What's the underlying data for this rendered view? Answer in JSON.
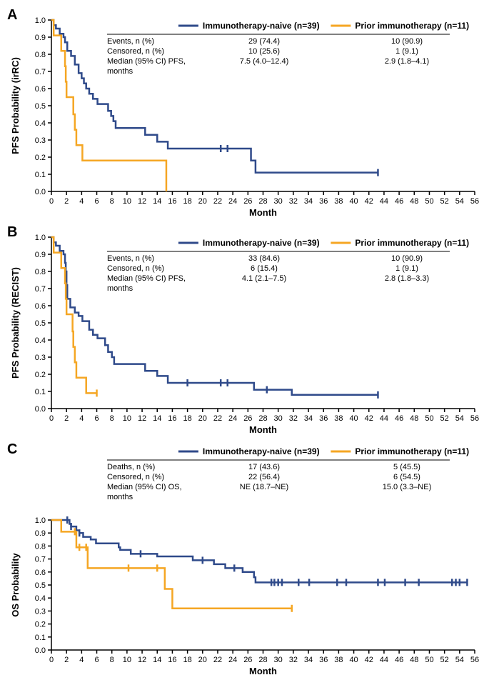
{
  "colors": {
    "naive": "#2f4a8a",
    "prior": "#f5a623",
    "axis": "#000000",
    "background": "#ffffff"
  },
  "typography": {
    "panel_label_fontsize": 20,
    "axis_label_fontsize": 13,
    "tick_label_fontsize": 11,
    "legend_fontsize": 12,
    "table_fontsize": 11,
    "font_family": "Arial"
  },
  "layout": {
    "total_width": 685,
    "panel_height_A": 300,
    "panel_height_B": 300,
    "panel_height_C": 340
  },
  "legend": {
    "naive_label": "Immunotherapy-naive (n=39)",
    "prior_label": "Prior immunotherapy (n=11)"
  },
  "panels": {
    "A": {
      "label": "A",
      "y_axis_label": "PFS Probability (irRC)",
      "x_axis_label": "Month",
      "xlim": [
        0,
        56
      ],
      "xtick_step": 2,
      "ylim": [
        0,
        1.0
      ],
      "ytick_step": 0.1,
      "table": {
        "rows": [
          "Events, n (%)",
          "Censored, n (%)",
          "Median (95% CI) PFS,",
          "months"
        ],
        "naive_vals": [
          "29 (74.4)",
          "10 (25.6)",
          "7.5 (4.0–12.4)",
          ""
        ],
        "prior_vals": [
          "10 (90.9)",
          "1 (9.1)",
          "2.9 (1.8–4.1)",
          ""
        ]
      },
      "km_naive": [
        [
          0,
          1.0
        ],
        [
          0.3,
          1.0
        ],
        [
          0.3,
          0.97
        ],
        [
          0.6,
          0.97
        ],
        [
          0.6,
          0.95
        ],
        [
          1.1,
          0.95
        ],
        [
          1.1,
          0.92
        ],
        [
          1.6,
          0.92
        ],
        [
          1.6,
          0.9
        ],
        [
          1.8,
          0.9
        ],
        [
          1.8,
          0.87
        ],
        [
          2.1,
          0.87
        ],
        [
          2.1,
          0.82
        ],
        [
          2.6,
          0.82
        ],
        [
          2.6,
          0.79
        ],
        [
          3.1,
          0.79
        ],
        [
          3.1,
          0.74
        ],
        [
          3.6,
          0.74
        ],
        [
          3.6,
          0.69
        ],
        [
          4.0,
          0.69
        ],
        [
          4.0,
          0.66
        ],
        [
          4.3,
          0.66
        ],
        [
          4.3,
          0.63
        ],
        [
          4.6,
          0.63
        ],
        [
          4.6,
          0.6
        ],
        [
          5.0,
          0.6
        ],
        [
          5.0,
          0.57
        ],
        [
          5.5,
          0.57
        ],
        [
          5.5,
          0.54
        ],
        [
          6.1,
          0.54
        ],
        [
          6.1,
          0.51
        ],
        [
          7.5,
          0.51
        ],
        [
          7.5,
          0.47
        ],
        [
          7.9,
          0.47
        ],
        [
          7.9,
          0.44
        ],
        [
          8.2,
          0.44
        ],
        [
          8.2,
          0.41
        ],
        [
          8.5,
          0.41
        ],
        [
          8.5,
          0.37
        ],
        [
          12.4,
          0.37
        ],
        [
          12.4,
          0.33
        ],
        [
          14.0,
          0.33
        ],
        [
          14.0,
          0.29
        ],
        [
          15.4,
          0.29
        ],
        [
          15.4,
          0.25
        ],
        [
          23.3,
          0.25
        ],
        [
          26.4,
          0.25
        ],
        [
          26.4,
          0.18
        ],
        [
          27.0,
          0.18
        ],
        [
          27.0,
          0.11
        ],
        [
          43.2,
          0.11
        ]
      ],
      "km_prior": [
        [
          0,
          1.0
        ],
        [
          0.3,
          1.0
        ],
        [
          0.3,
          0.91
        ],
        [
          1.3,
          0.91
        ],
        [
          1.3,
          0.82
        ],
        [
          1.8,
          0.82
        ],
        [
          1.8,
          0.73
        ],
        [
          1.9,
          0.73
        ],
        [
          1.9,
          0.64
        ],
        [
          2.0,
          0.64
        ],
        [
          2.0,
          0.55
        ],
        [
          2.9,
          0.55
        ],
        [
          2.9,
          0.45
        ],
        [
          3.1,
          0.45
        ],
        [
          3.1,
          0.36
        ],
        [
          3.3,
          0.36
        ],
        [
          3.3,
          0.27
        ],
        [
          4.1,
          0.27
        ],
        [
          4.1,
          0.18
        ],
        [
          15.2,
          0.18
        ],
        [
          15.2,
          0.0
        ]
      ],
      "censor_naive": [
        [
          22.4,
          0.25
        ],
        [
          23.3,
          0.25
        ],
        [
          43.2,
          0.11
        ]
      ],
      "censor_prior": []
    },
    "B": {
      "label": "B",
      "y_axis_label": "PFS Probability (RECIST)",
      "x_axis_label": "Month",
      "xlim": [
        0,
        56
      ],
      "xtick_step": 2,
      "ylim": [
        0,
        1.0
      ],
      "ytick_step": 0.1,
      "table": {
        "rows": [
          "Events, n (%)",
          "Censored, n (%)",
          "Median (95% CI) PFS,",
          "months"
        ],
        "naive_vals": [
          "33 (84.6)",
          "6 (15.4)",
          "4.1 (2.1–7.5)",
          ""
        ],
        "prior_vals": [
          "10 (90.9)",
          "1 (9.1)",
          "2.8 (1.8–3.3)",
          ""
        ]
      },
      "km_naive": [
        [
          0,
          1.0
        ],
        [
          0.3,
          1.0
        ],
        [
          0.3,
          0.97
        ],
        [
          0.6,
          0.97
        ],
        [
          0.6,
          0.95
        ],
        [
          1.1,
          0.95
        ],
        [
          1.1,
          0.92
        ],
        [
          1.6,
          0.92
        ],
        [
          1.6,
          0.9
        ],
        [
          1.8,
          0.9
        ],
        [
          1.8,
          0.85
        ],
        [
          1.9,
          0.85
        ],
        [
          1.9,
          0.8
        ],
        [
          2.0,
          0.8
        ],
        [
          2.0,
          0.72
        ],
        [
          2.1,
          0.72
        ],
        [
          2.1,
          0.64
        ],
        [
          2.5,
          0.64
        ],
        [
          2.5,
          0.59
        ],
        [
          3.1,
          0.59
        ],
        [
          3.1,
          0.56
        ],
        [
          3.6,
          0.56
        ],
        [
          3.6,
          0.54
        ],
        [
          4.1,
          0.54
        ],
        [
          4.1,
          0.51
        ],
        [
          5.0,
          0.51
        ],
        [
          5.0,
          0.46
        ],
        [
          5.5,
          0.46
        ],
        [
          5.5,
          0.43
        ],
        [
          6.1,
          0.43
        ],
        [
          6.1,
          0.41
        ],
        [
          7.1,
          0.41
        ],
        [
          7.1,
          0.37
        ],
        [
          7.5,
          0.37
        ],
        [
          7.5,
          0.33
        ],
        [
          8.0,
          0.33
        ],
        [
          8.0,
          0.3
        ],
        [
          8.3,
          0.3
        ],
        [
          8.3,
          0.26
        ],
        [
          12.4,
          0.26
        ],
        [
          12.4,
          0.22
        ],
        [
          14.0,
          0.22
        ],
        [
          14.0,
          0.19
        ],
        [
          15.4,
          0.19
        ],
        [
          15.4,
          0.15
        ],
        [
          26.8,
          0.15
        ],
        [
          26.8,
          0.11
        ],
        [
          31.8,
          0.11
        ],
        [
          31.8,
          0.08
        ],
        [
          43.2,
          0.08
        ]
      ],
      "km_prior": [
        [
          0,
          1.0
        ],
        [
          0.3,
          1.0
        ],
        [
          0.3,
          0.91
        ],
        [
          1.3,
          0.91
        ],
        [
          1.3,
          0.82
        ],
        [
          1.8,
          0.82
        ],
        [
          1.8,
          0.73
        ],
        [
          1.9,
          0.73
        ],
        [
          1.9,
          0.64
        ],
        [
          2.0,
          0.64
        ],
        [
          2.0,
          0.55
        ],
        [
          2.8,
          0.55
        ],
        [
          2.8,
          0.45
        ],
        [
          2.9,
          0.45
        ],
        [
          2.9,
          0.36
        ],
        [
          3.1,
          0.36
        ],
        [
          3.1,
          0.27
        ],
        [
          3.3,
          0.27
        ],
        [
          3.3,
          0.18
        ],
        [
          4.6,
          0.18
        ],
        [
          4.6,
          0.09
        ],
        [
          6.0,
          0.09
        ]
      ],
      "censor_naive": [
        [
          18.0,
          0.15
        ],
        [
          22.4,
          0.15
        ],
        [
          23.3,
          0.15
        ],
        [
          28.5,
          0.11
        ],
        [
          43.2,
          0.08
        ]
      ],
      "censor_prior": [
        [
          6.0,
          0.09
        ]
      ]
    },
    "C": {
      "label": "C",
      "y_axis_label": "OS Probability",
      "x_axis_label": "Month",
      "xlim": [
        0,
        56
      ],
      "xtick_step": 2,
      "ylim": [
        0,
        1.0
      ],
      "ytick_step": 0.1,
      "table": {
        "rows": [
          "Deaths, n (%)",
          "Censored, n (%)",
          "Median (95% CI) OS,",
          "months"
        ],
        "naive_vals": [
          "17 (43.6)",
          "22 (56.4)",
          "NE (18.7–NE)",
          ""
        ],
        "prior_vals": [
          "5 (45.5)",
          "6 (54.5)",
          "15.0 (3.3–NE)",
          ""
        ]
      },
      "km_naive": [
        [
          0,
          1.0
        ],
        [
          2.4,
          1.0
        ],
        [
          2.4,
          0.97
        ],
        [
          2.6,
          0.97
        ],
        [
          2.6,
          0.95
        ],
        [
          3.3,
          0.95
        ],
        [
          3.3,
          0.92
        ],
        [
          3.7,
          0.92
        ],
        [
          3.7,
          0.9
        ],
        [
          4.2,
          0.9
        ],
        [
          4.2,
          0.87
        ],
        [
          5.2,
          0.87
        ],
        [
          5.2,
          0.85
        ],
        [
          5.9,
          0.85
        ],
        [
          5.9,
          0.82
        ],
        [
          8.9,
          0.82
        ],
        [
          8.9,
          0.79
        ],
        [
          9.1,
          0.79
        ],
        [
          9.1,
          0.77
        ],
        [
          10.5,
          0.77
        ],
        [
          10.5,
          0.74
        ],
        [
          14.0,
          0.74
        ],
        [
          14.0,
          0.72
        ],
        [
          18.7,
          0.72
        ],
        [
          18.7,
          0.69
        ],
        [
          21.5,
          0.69
        ],
        [
          21.5,
          0.66
        ],
        [
          23.0,
          0.66
        ],
        [
          23.0,
          0.63
        ],
        [
          25.3,
          0.63
        ],
        [
          25.3,
          0.6
        ],
        [
          26.8,
          0.6
        ],
        [
          26.8,
          0.56
        ],
        [
          27.0,
          0.56
        ],
        [
          27.0,
          0.52
        ],
        [
          55.0,
          0.52
        ]
      ],
      "km_prior": [
        [
          0,
          1.0
        ],
        [
          1.3,
          1.0
        ],
        [
          1.3,
          0.91
        ],
        [
          3.1,
          0.91
        ],
        [
          3.3,
          0.91
        ],
        [
          3.3,
          0.79
        ],
        [
          4.8,
          0.79
        ],
        [
          4.8,
          0.63
        ],
        [
          15.0,
          0.63
        ],
        [
          15.0,
          0.47
        ],
        [
          16.0,
          0.47
        ],
        [
          16.0,
          0.32
        ],
        [
          31.8,
          0.32
        ]
      ],
      "censor_naive": [
        [
          2.1,
          1.0
        ],
        [
          2.6,
          0.95
        ],
        [
          3.7,
          0.9
        ],
        [
          11.8,
          0.74
        ],
        [
          20.0,
          0.69
        ],
        [
          24.2,
          0.63
        ],
        [
          29.1,
          0.52
        ],
        [
          29.5,
          0.52
        ],
        [
          30.0,
          0.52
        ],
        [
          30.5,
          0.52
        ],
        [
          32.7,
          0.52
        ],
        [
          34.1,
          0.52
        ],
        [
          37.8,
          0.52
        ],
        [
          39.0,
          0.52
        ],
        [
          43.2,
          0.52
        ],
        [
          44.1,
          0.52
        ],
        [
          46.8,
          0.52
        ],
        [
          48.6,
          0.52
        ],
        [
          53.0,
          0.52
        ],
        [
          53.5,
          0.52
        ],
        [
          54.0,
          0.52
        ],
        [
          55.0,
          0.52
        ]
      ],
      "censor_prior": [
        [
          3.1,
          0.91
        ],
        [
          3.7,
          0.79
        ],
        [
          4.6,
          0.79
        ],
        [
          10.2,
          0.63
        ],
        [
          14.0,
          0.63
        ],
        [
          31.8,
          0.32
        ]
      ]
    }
  }
}
